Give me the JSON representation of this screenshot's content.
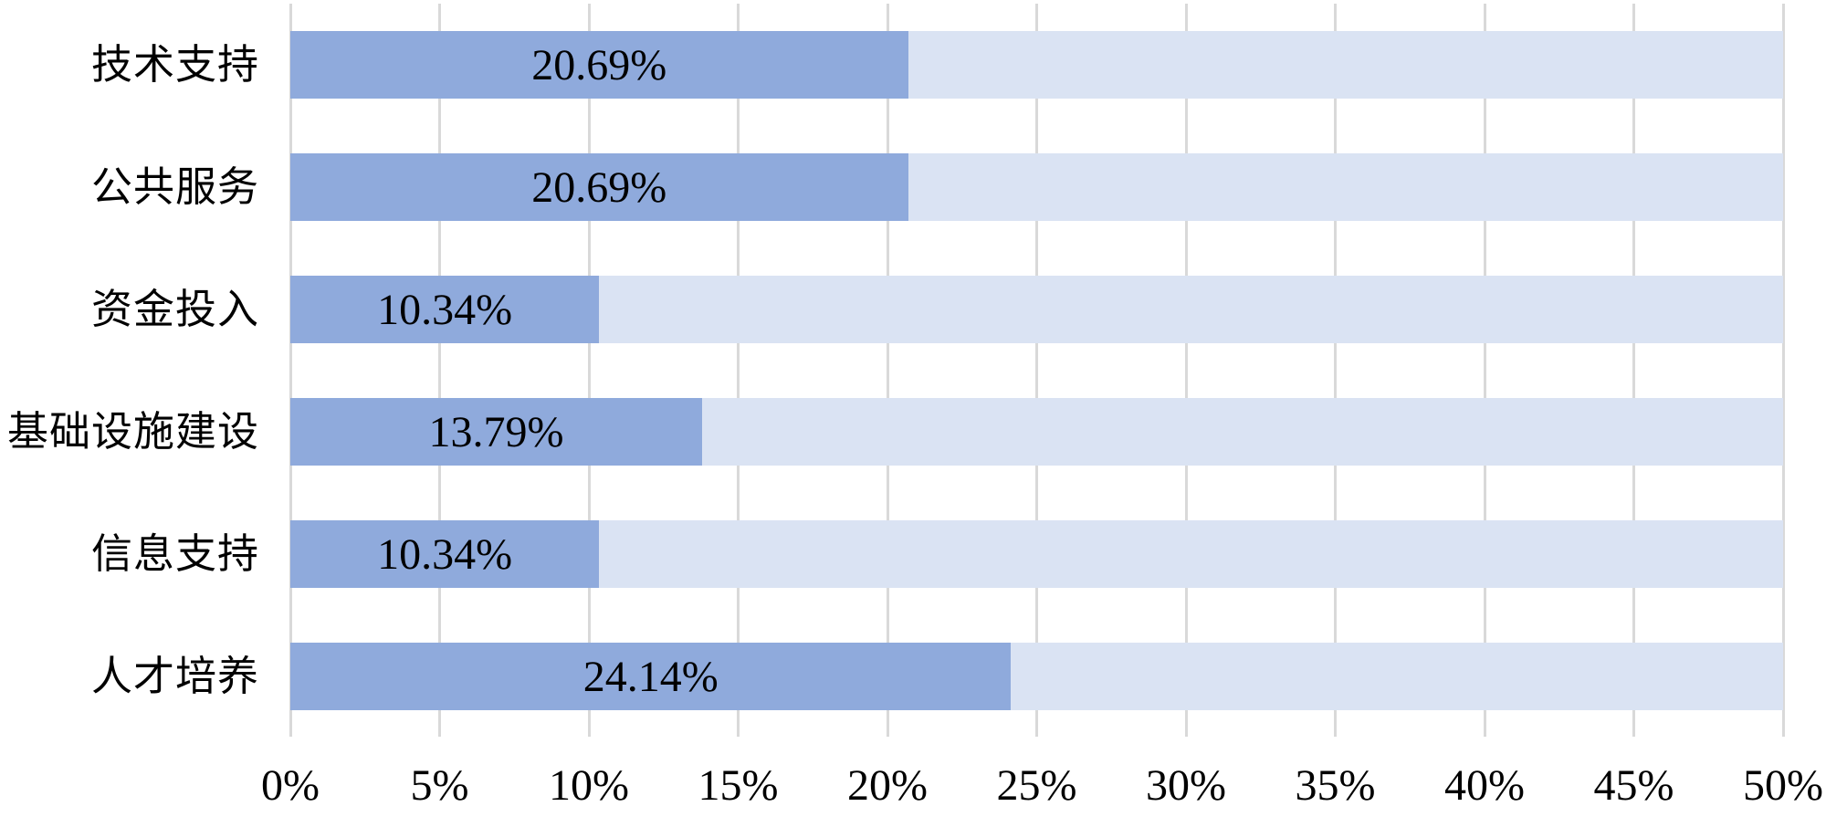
{
  "chart_data": {
    "type": "bar",
    "orientation": "horizontal",
    "title": "",
    "xlabel": "",
    "ylabel": "",
    "categories": [
      "技术支持",
      "公共服务",
      "资金投入",
      "基础设施建设",
      "信息支持",
      "人才培养"
    ],
    "values": [
      20.69,
      20.69,
      10.34,
      13.79,
      10.34,
      24.14
    ],
    "value_labels": [
      "20.69%",
      "20.69%",
      "10.34%",
      "13.79%",
      "10.34%",
      "24.14%"
    ],
    "xlim": [
      0,
      50
    ],
    "x_ticks": [
      "0%",
      "5%",
      "10%",
      "15%",
      "20%",
      "25%",
      "30%",
      "35%",
      "40%",
      "45%",
      "50%"
    ],
    "x_tick_values": [
      0,
      5,
      10,
      15,
      20,
      25,
      30,
      35,
      40,
      45,
      50
    ],
    "grid": "vertical-gridlines-on",
    "legend": "none",
    "track_full_width": true,
    "colors": {
      "bar_fill": "#8faadc",
      "bar_track": "#dae3f3",
      "gridline": "#d9d9d9",
      "text": "#000000",
      "background": "#ffffff"
    }
  }
}
